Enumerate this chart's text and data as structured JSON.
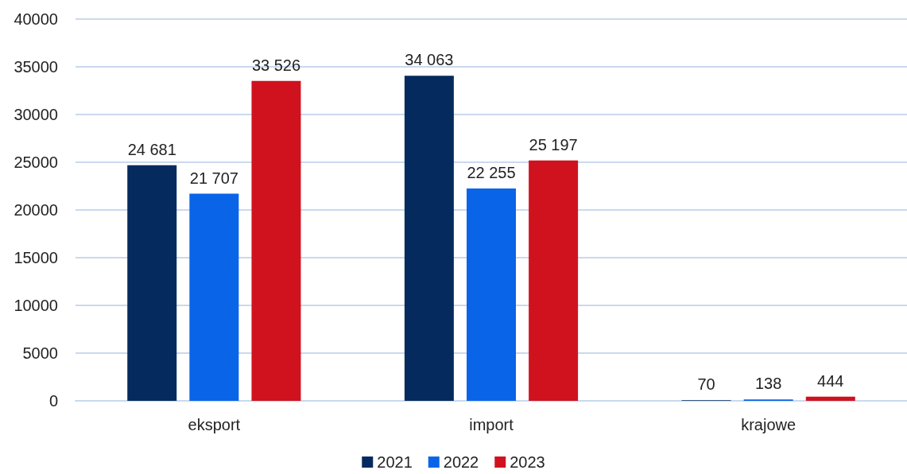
{
  "chart_data": {
    "type": "bar",
    "categories": [
      "eksport",
      "import",
      "krajowe"
    ],
    "series": [
      {
        "name": "2021",
        "color": "#052b5e",
        "values": [
          24681,
          34063,
          70
        ],
        "value_labels": [
          "24 681",
          "34 063",
          "70"
        ]
      },
      {
        "name": "2022",
        "color": "#0a64e8",
        "values": [
          21707,
          22255,
          138
        ],
        "value_labels": [
          "21 707",
          "22 255",
          "138"
        ]
      },
      {
        "name": "2023",
        "color": "#d0121f",
        "values": [
          33526,
          25197,
          444
        ],
        "value_labels": [
          "33 526",
          "25 197",
          "444"
        ]
      }
    ],
    "ylim": [
      0,
      40000
    ],
    "yticks": [
      0,
      5000,
      10000,
      15000,
      20000,
      25000,
      30000,
      35000,
      40000
    ],
    "grid": "y",
    "legend": "bottom"
  }
}
